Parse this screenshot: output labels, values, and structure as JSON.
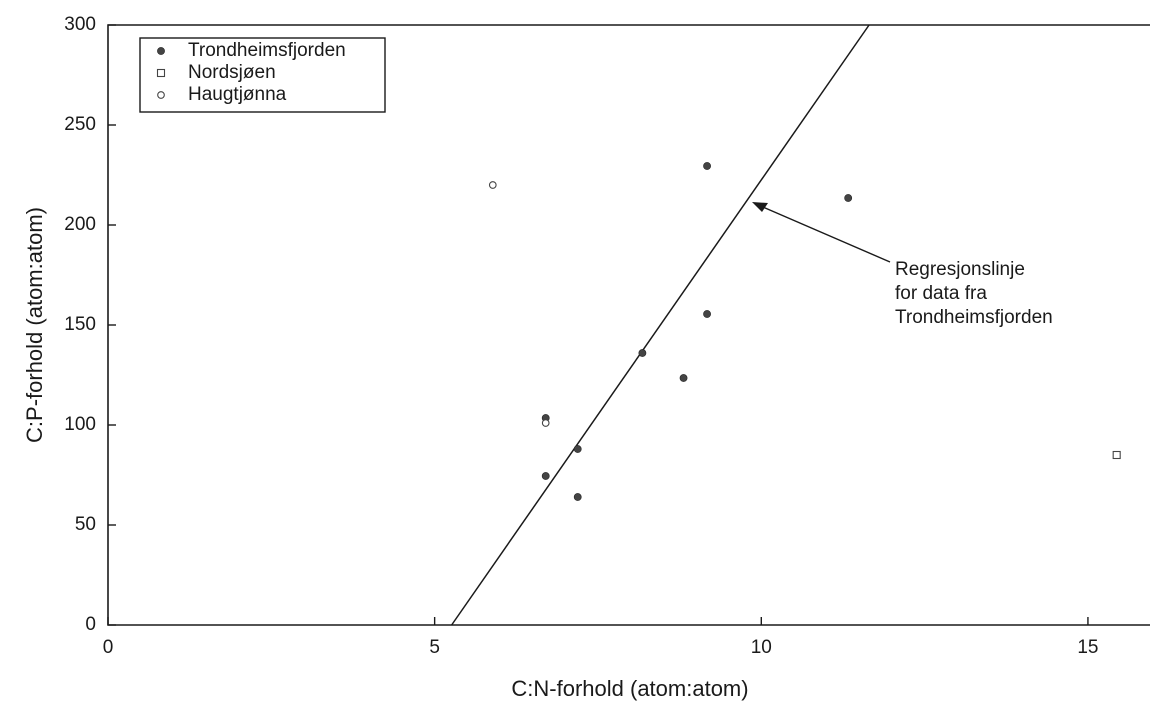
{
  "chart_data": {
    "type": "scatter",
    "x_label": "C:N-forhold (atom:atom)",
    "y_label": "C:P-forhold (atom:atom)",
    "xlim": [
      0,
      15.95
    ],
    "ylim": [
      0,
      300
    ],
    "xticks": [
      0,
      5,
      10,
      15
    ],
    "yticks": [
      0,
      50,
      100,
      150,
      200,
      250,
      300
    ],
    "legend": "upper left",
    "series": [
      {
        "name": "Trondheimsfjorden",
        "color": "#444444",
        "marker": "filled-circle",
        "x": [
          6.7,
          6.7,
          7.19,
          7.19,
          8.18,
          8.81,
          9.17,
          9.17,
          11.33
        ],
        "y": [
          103.5,
          74.5,
          88,
          64,
          136,
          123.5,
          155.5,
          229.5,
          213.5
        ]
      },
      {
        "name": "Nordsjøen",
        "color": "#444444",
        "marker": "open-square",
        "x": [
          15.44
        ],
        "y": [
          85
        ]
      },
      {
        "name": "Haugtjønna",
        "color": "#444444",
        "marker": "open-circle",
        "x": [
          5.89,
          6.7
        ],
        "y": [
          220,
          101
        ]
      }
    ],
    "regression_line": {
      "x": [
        5.26,
        11.65
      ],
      "y": [
        0,
        300
      ]
    },
    "annotation": [
      "Regresjonslinje",
      "for data fra",
      "Trondheimsfjorden"
    ]
  }
}
